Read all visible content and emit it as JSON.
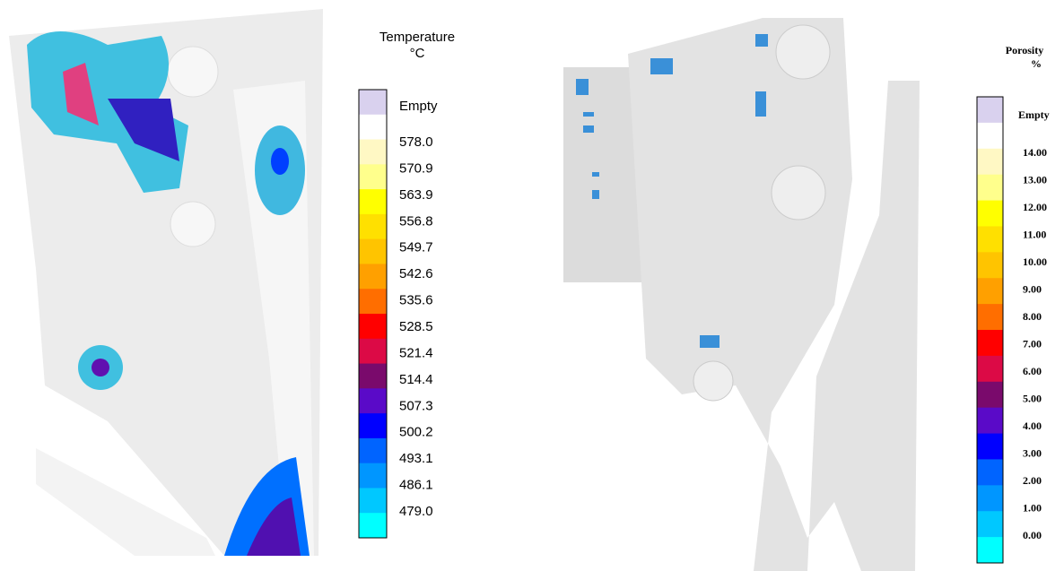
{
  "left_legend": {
    "title": "Temperature",
    "unit": "°C",
    "empty": "Empty",
    "labels": [
      "578.0",
      "570.9",
      "563.9",
      "556.8",
      "549.7",
      "542.6",
      "535.6",
      "528.5",
      "521.4",
      "514.4",
      "507.3",
      "500.2",
      "493.1",
      "486.1",
      "479.0"
    ],
    "colors": [
      "#d9d1ee",
      "#ffffff",
      "#fff8c4",
      "#ffff8c",
      "#ffff00",
      "#ffe000",
      "#ffc400",
      "#ffa000",
      "#ff6e00",
      "#ff0000",
      "#dc0a46",
      "#7a0a6c",
      "#5a0ac8",
      "#0000ff",
      "#0064ff",
      "#0096ff",
      "#00c8ff",
      "#00ffff"
    ]
  },
  "right_legend": {
    "title": "Porosity",
    "unit": "%",
    "empty": "Empty",
    "labels": [
      "14.00",
      "13.00",
      "12.00",
      "11.00",
      "10.00",
      "9.00",
      "8.00",
      "7.00",
      "6.00",
      "5.00",
      "4.00",
      "3.00",
      "2.00",
      "1.00",
      "0.00"
    ],
    "colors": [
      "#d9d1ee",
      "#ffffff",
      "#fff8c4",
      "#ffff8c",
      "#ffff00",
      "#ffe000",
      "#ffc400",
      "#ffa000",
      "#ff6e00",
      "#ff0000",
      "#dc0a46",
      "#7a0a6c",
      "#5a0ac8",
      "#0000ff",
      "#0064ff",
      "#0096ff",
      "#00c8ff",
      "#00ffff"
    ]
  }
}
